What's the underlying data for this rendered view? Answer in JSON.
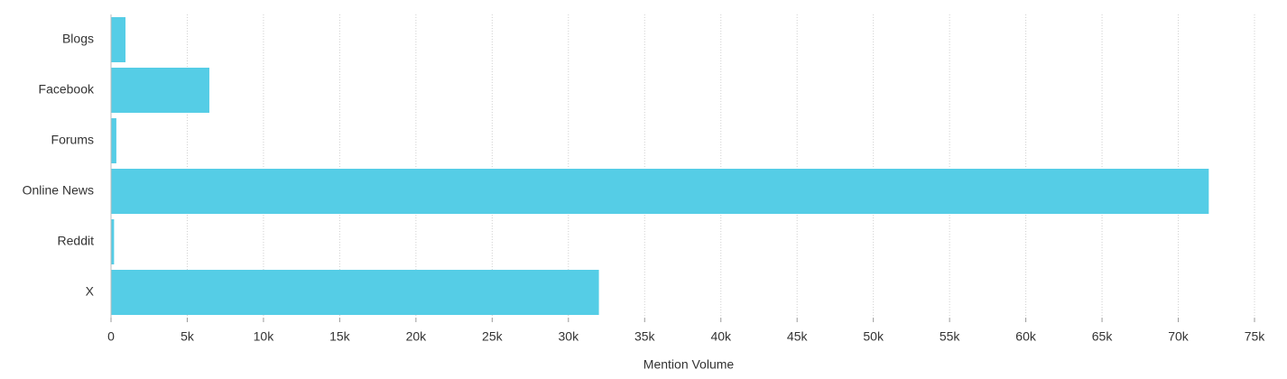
{
  "chart_data": {
    "type": "hbar",
    "x_label": "Mention Volume",
    "categories": [
      "Blogs",
      "Facebook",
      "Forums",
      "Online News",
      "Reddit",
      "X"
    ],
    "values": [
      950,
      6450,
      350,
      72000,
      200,
      32000
    ],
    "color": "#55cde6",
    "xlim": [
      0,
      75000
    ],
    "xticks": [
      0,
      {
        "value": 5000,
        "label": "5k"
      },
      {
        "value": 10000,
        "label": "10k"
      },
      {
        "value": 15000,
        "label": "15k"
      },
      {
        "value": 20000,
        "label": "20k"
      },
      {
        "value": 25000,
        "label": "25k"
      },
      {
        "value": 30000,
        "label": "30k"
      },
      {
        "value": 35000,
        "label": "35k"
      },
      {
        "value": 40000,
        "label": "40k"
      },
      {
        "value": 45000,
        "label": "45k"
      },
      {
        "value": 50000,
        "label": "50k"
      },
      {
        "value": 55000,
        "label": "55k"
      },
      {
        "value": 60000,
        "label": "60k"
      },
      {
        "value": 65000,
        "label": "65k"
      },
      {
        "value": 70000,
        "label": "70k"
      },
      {
        "value": 75000,
        "label": "75k"
      }
    ],
    "grid": true
  }
}
